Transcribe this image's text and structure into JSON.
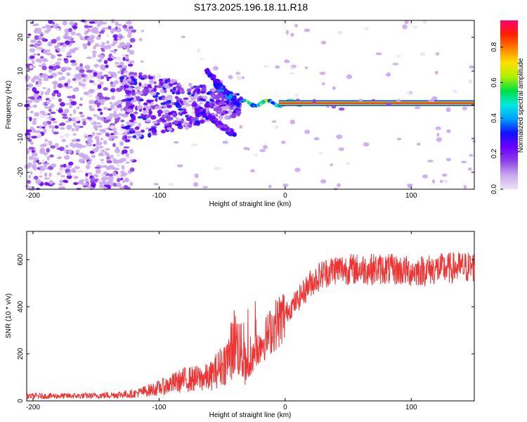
{
  "title": "S173.2025.196.18.11.R18",
  "chart_data": [
    {
      "type": "heatmap",
      "xlabel": "Height of straight line (km)",
      "ylabel": "Frequency (Hz)",
      "xlim": [
        -205,
        150
      ],
      "ylim": [
        -25,
        25
      ],
      "x_ticks": [
        -200,
        -100,
        0,
        100
      ],
      "y_ticks": [
        -20,
        -10,
        0,
        10,
        20
      ],
      "colorbar": {
        "label": "Normalized spectral amplitude",
        "range": [
          0.0,
          0.95
        ],
        "ticks": [
          0.0,
          0.2,
          0.4,
          0.6,
          0.8
        ],
        "colors": [
          "#ece2f5",
          "#c9a9ee",
          "#8c40e8",
          "#6a00ff",
          "#1010ff",
          "#00a0ff",
          "#00e8e0",
          "#00e040",
          "#b0f000",
          "#ffe000",
          "#ff8000",
          "#ff2000",
          "#ff0070"
        ]
      },
      "features": [
        {
          "name": "carrier",
          "x_range": [
            -5,
            150
          ],
          "frequency": 0.5,
          "amplitude": 0.85
        },
        {
          "name": "diffuse",
          "x_range": [
            -205,
            -120
          ],
          "frequency_range": [
            -25,
            25
          ],
          "amplitude": 0.15
        },
        {
          "name": "diagonal-traces",
          "x_range": [
            -65,
            -35
          ],
          "frequency_range": [
            -10,
            10
          ],
          "amplitude": 0.35
        }
      ]
    },
    {
      "type": "line",
      "xlabel": "Height of straight line (km)",
      "ylabel": "SNR (10 * v/v)",
      "xlim": [
        -205,
        150
      ],
      "ylim": [
        0,
        720
      ],
      "x_ticks": [
        -200,
        -100,
        0,
        100
      ],
      "y_ticks": [
        0,
        200,
        400,
        600
      ],
      "color": "#ee3333",
      "series": [
        {
          "x": [
            -205,
            -150,
            -120,
            -100,
            -80,
            -60,
            -45,
            -40,
            -35,
            -30,
            -28,
            -25,
            -20,
            -15,
            -10,
            -5,
            0,
            10,
            20,
            30,
            40,
            60,
            80,
            100,
            120,
            150
          ],
          "y": [
            20,
            22,
            30,
            55,
            90,
            100,
            180,
            260,
            210,
            120,
            140,
            200,
            240,
            270,
            310,
            340,
            370,
            430,
            500,
            540,
            560,
            560,
            560,
            550,
            560,
            570
          ]
        }
      ]
    }
  ]
}
